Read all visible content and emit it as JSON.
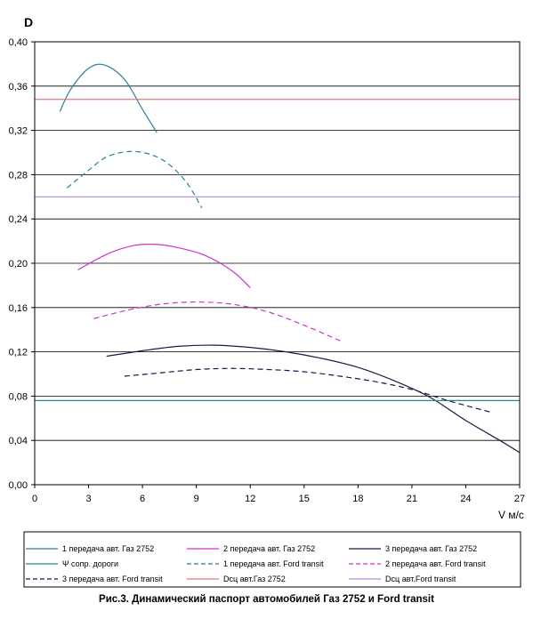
{
  "chart_data": {
    "type": "line",
    "ylabel": "D",
    "xlabel": "V м/с",
    "xlim": [
      0,
      27
    ],
    "ylim": [
      0,
      0.4
    ],
    "x_ticks": [
      "0",
      "3",
      "6",
      "9",
      "12",
      "15",
      "18",
      "21",
      "24",
      "27"
    ],
    "y_ticks": [
      "0,00",
      "0,04",
      "0,08",
      "0,12",
      "0,16",
      "0,20",
      "0,24",
      "0,28",
      "0,32",
      "0,36",
      "0,40"
    ],
    "grid": true,
    "legend_position": "bottom",
    "caption": "Рис.3. Динамический паспорт автомобилей Газ 2752 и Ford transit",
    "series": [
      {
        "name": "1 передача авт. Газ 2752",
        "color": "#2b7d9a",
        "dash": "solid",
        "points": [
          [
            1.4,
            0.337
          ],
          [
            2.0,
            0.357
          ],
          [
            3.0,
            0.376
          ],
          [
            3.9,
            0.379
          ],
          [
            5.0,
            0.366
          ],
          [
            6.0,
            0.339
          ],
          [
            6.8,
            0.318
          ]
        ]
      },
      {
        "name": "2 передача авт. Газ 2752",
        "color": "#cc33cc",
        "dash": "solid",
        "points": [
          [
            2.4,
            0.194
          ],
          [
            4.0,
            0.208
          ],
          [
            5.5,
            0.216
          ],
          [
            6.8,
            0.217
          ],
          [
            8.0,
            0.214
          ],
          [
            9.5,
            0.207
          ],
          [
            11.0,
            0.193
          ],
          [
            12.0,
            0.178
          ]
        ]
      },
      {
        "name": "3 передача авт. Газ 2752",
        "color": "#1a1a4a",
        "dash": "solid",
        "points": [
          [
            4.0,
            0.116
          ],
          [
            6.0,
            0.121
          ],
          [
            8.0,
            0.125
          ],
          [
            10.0,
            0.126
          ],
          [
            12.0,
            0.124
          ],
          [
            14.0,
            0.12
          ],
          [
            16.0,
            0.114
          ],
          [
            18.0,
            0.106
          ],
          [
            20.0,
            0.094
          ],
          [
            22.0,
            0.079
          ],
          [
            24.0,
            0.058
          ],
          [
            26.0,
            0.039
          ],
          [
            27.0,
            0.029
          ]
        ]
      },
      {
        "name": "Ψ сопр. дороги",
        "color": "#2a8a8a",
        "dash": "solid",
        "points": [
          [
            0,
            0.076
          ],
          [
            27,
            0.076
          ]
        ]
      },
      {
        "name": "1 передача авт. Ford transit",
        "color": "#2b7d9a",
        "dash": "dashed",
        "points": [
          [
            1.8,
            0.268
          ],
          [
            3.0,
            0.284
          ],
          [
            4.0,
            0.296
          ],
          [
            5.3,
            0.301
          ],
          [
            6.5,
            0.298
          ],
          [
            7.5,
            0.289
          ],
          [
            8.5,
            0.272
          ],
          [
            9.3,
            0.25
          ]
        ]
      },
      {
        "name": "2 передача авт. Ford transit",
        "color": "#cc33cc",
        "dash": "dashed",
        "points": [
          [
            3.3,
            0.15
          ],
          [
            5.0,
            0.157
          ],
          [
            7.0,
            0.163
          ],
          [
            9.0,
            0.165
          ],
          [
            11.0,
            0.163
          ],
          [
            13.0,
            0.156
          ],
          [
            15.0,
            0.144
          ],
          [
            17.0,
            0.13
          ]
        ]
      },
      {
        "name": "3 передача авт. Ford transit",
        "color": "#1a1a4a",
        "dash": "dashed",
        "points": [
          [
            5.0,
            0.098
          ],
          [
            7.0,
            0.101
          ],
          [
            9.0,
            0.104
          ],
          [
            11.0,
            0.105
          ],
          [
            13.0,
            0.104
          ],
          [
            15.0,
            0.102
          ],
          [
            17.0,
            0.098
          ],
          [
            19.0,
            0.093
          ],
          [
            21.0,
            0.086
          ],
          [
            23.0,
            0.076
          ],
          [
            25.5,
            0.065
          ]
        ]
      },
      {
        "name": "Dсц авт.Газ 2752",
        "color": "#e07a7a",
        "dash": "solid",
        "points": [
          [
            0,
            0.348
          ],
          [
            27,
            0.348
          ]
        ]
      },
      {
        "name": "Dсц авт.Ford transit",
        "color": "#b48ae0",
        "dash": "solid",
        "points": [
          [
            0,
            0.26
          ],
          [
            27,
            0.26
          ]
        ]
      }
    ]
  }
}
